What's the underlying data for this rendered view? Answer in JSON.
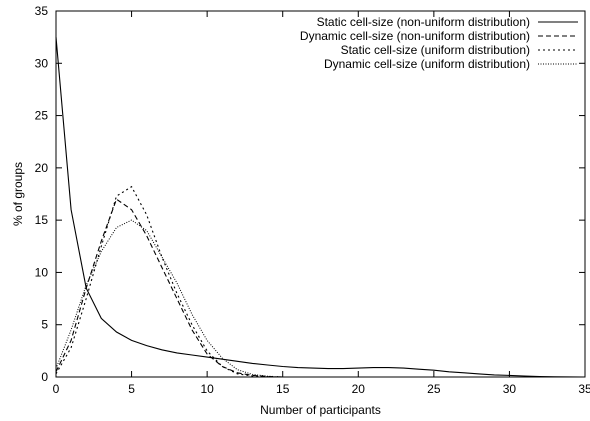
{
  "chart_data": {
    "type": "line",
    "title": "",
    "xlabel": "Number of participants",
    "ylabel": "% of groups",
    "xlim": [
      0,
      35
    ],
    "ylim": [
      0,
      35
    ],
    "xticks": [
      "0",
      "5",
      "10",
      "15",
      "20",
      "25",
      "30",
      "35"
    ],
    "yticks": [
      "0",
      "5",
      "10",
      "15",
      "20",
      "25",
      "30",
      "35"
    ],
    "grid": false,
    "legend_position": "top-right",
    "series": [
      {
        "name": "Static cell-size (non-uniform distribution)",
        "style": "solid",
        "x": [
          0,
          1,
          2,
          3,
          4,
          5,
          6,
          7,
          8,
          9,
          10,
          11,
          12,
          13,
          14,
          15,
          16,
          17,
          18,
          19,
          20,
          21,
          22,
          23,
          24,
          25,
          26,
          27,
          28,
          29,
          30,
          31,
          32,
          33,
          34,
          35
        ],
        "y": [
          32.5,
          16.0,
          8.5,
          5.6,
          4.3,
          3.5,
          3.0,
          2.6,
          2.3,
          2.1,
          1.9,
          1.7,
          1.5,
          1.3,
          1.15,
          1.0,
          0.9,
          0.85,
          0.8,
          0.8,
          0.85,
          0.9,
          0.9,
          0.85,
          0.75,
          0.65,
          0.5,
          0.4,
          0.3,
          0.2,
          0.15,
          0.1,
          0.05,
          0.02,
          0.01,
          0.0
        ]
      },
      {
        "name": "Dynamic cell-size (non-uniform distribution)",
        "style": "dashed",
        "x": [
          0,
          1,
          2,
          3,
          4,
          5,
          6,
          7,
          8,
          9,
          10,
          11,
          12,
          13,
          14,
          15
        ],
        "y": [
          0.5,
          3.5,
          8.5,
          13.0,
          17.0,
          16.0,
          13.5,
          10.5,
          7.5,
          4.5,
          2.2,
          1.0,
          0.4,
          0.15,
          0.05,
          0.0
        ]
      },
      {
        "name": "Static cell-size (uniform distribution)",
        "style": "dotted",
        "x": [
          0,
          1,
          2,
          3,
          4,
          5,
          6,
          7,
          8,
          9,
          10,
          11,
          12,
          13,
          14,
          15
        ],
        "y": [
          0.3,
          2.8,
          7.5,
          12.5,
          17.3,
          18.2,
          15.5,
          11.5,
          8.0,
          5.0,
          2.5,
          1.0,
          0.3,
          0.1,
          0.02,
          0.0
        ]
      },
      {
        "name": "Dynamic cell-size (uniform distribution)",
        "style": "densely-dotted",
        "x": [
          0,
          1,
          2,
          3,
          4,
          5,
          6,
          7,
          8,
          9,
          10,
          11,
          12,
          13,
          14,
          15
        ],
        "y": [
          0.8,
          4.5,
          8.8,
          12.0,
          14.3,
          15.0,
          14.0,
          11.5,
          9.0,
          6.0,
          3.5,
          1.8,
          0.7,
          0.25,
          0.08,
          0.0
        ]
      }
    ]
  }
}
